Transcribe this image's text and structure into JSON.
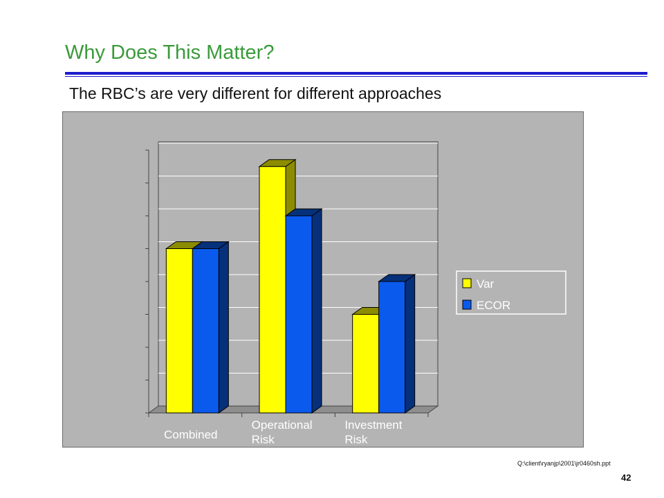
{
  "slide": {
    "title": "Why Does This Matter?",
    "subtitle": "The RBC’s are very different for different approaches",
    "footer_path": "Q:\\client\\ryanjp\\2001\\jr0460sh.ppt",
    "page_number": "42"
  },
  "colors": {
    "title": "#3a9a3a",
    "rule": "#1c1ccc",
    "chart_background": "#b4b4b4",
    "var_front": "#ffff00",
    "var_side": "#8c8c00",
    "ecor_front": "#0a5aee",
    "ecor_side": "#06307a"
  },
  "chart_data": {
    "type": "bar",
    "title": "",
    "xlabel": "",
    "ylabel": "",
    "categories": [
      "Combined",
      "Operational Risk",
      "Investment Risk"
    ],
    "series": [
      {
        "name": "Var",
        "values": [
          100,
          150,
          60
        ]
      },
      {
        "name": "ECOR",
        "values": [
          100,
          120,
          80
        ]
      }
    ],
    "ylim": [
      0,
      160
    ],
    "grid": true,
    "legend_position": "right"
  }
}
